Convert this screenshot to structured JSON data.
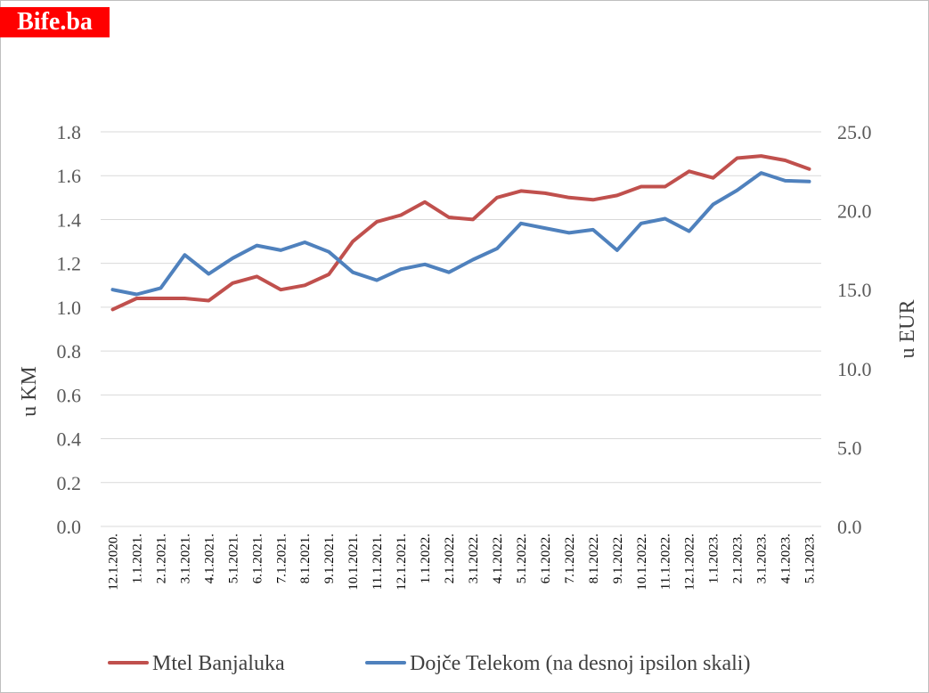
{
  "brand": {
    "label": "Bife.ba",
    "color": "#ff0000"
  },
  "chart_data": {
    "type": "line",
    "title": "",
    "ylabel_left": "u KM",
    "ylabel_right": "u EUR",
    "ylim_left": [
      0,
      1.8
    ],
    "ylim_right": [
      0,
      25
    ],
    "yticks_left": [
      "0.0",
      "0.2",
      "0.4",
      "0.6",
      "0.8",
      "1.0",
      "1.2",
      "1.4",
      "1.6",
      "1.8"
    ],
    "yticks_right": [
      "0.0",
      "5.0",
      "10.0",
      "15.0",
      "20.0",
      "25.0"
    ],
    "grid": true,
    "legend_position": "bottom",
    "categories": [
      "12.1.2020.",
      "1.1.2021.",
      "2.1.2021.",
      "3.1.2021.",
      "4.1.2021.",
      "5.1.2021.",
      "6.1.2021.",
      "7.1.2021.",
      "8.1.2021.",
      "9.1.2021.",
      "10.1.2021.",
      "11.1.2021.",
      "12.1.2021.",
      "1.1.2022.",
      "2.1.2022.",
      "3.1.2022.",
      "4.1.2022.",
      "5.1.2022.",
      "6.1.2022.",
      "7.1.2022.",
      "8.1.2022.",
      "9.1.2022.",
      "10.1.2022.",
      "11.1.2022.",
      "12.1.2022.",
      "1.1.2023.",
      "2.1.2023.",
      "3.1.2023.",
      "4.1.2023.",
      "5.1.2023."
    ],
    "series": [
      {
        "name": "Mtel Banjaluka",
        "axis": "left",
        "color": "#c0504d",
        "values": [
          0.99,
          1.04,
          1.04,
          1.04,
          1.03,
          1.11,
          1.14,
          1.08,
          1.1,
          1.15,
          1.3,
          1.39,
          1.42,
          1.48,
          1.41,
          1.4,
          1.5,
          1.53,
          1.52,
          1.5,
          1.49,
          1.51,
          1.55,
          1.55,
          1.62,
          1.59,
          1.68,
          1.69,
          1.67,
          1.63
        ]
      },
      {
        "name": "Dojče Telekom (na desnoj ipsilon skali)",
        "axis": "right",
        "color": "#4f81bd",
        "values": [
          15.0,
          14.7,
          15.1,
          17.2,
          16.0,
          17.0,
          17.8,
          17.5,
          18.0,
          17.4,
          16.1,
          15.6,
          16.3,
          16.6,
          16.1,
          16.9,
          17.6,
          19.2,
          18.9,
          18.6,
          18.8,
          17.5,
          19.2,
          19.5,
          18.7,
          20.4,
          21.3,
          22.4,
          21.9,
          21.85
        ]
      }
    ]
  }
}
